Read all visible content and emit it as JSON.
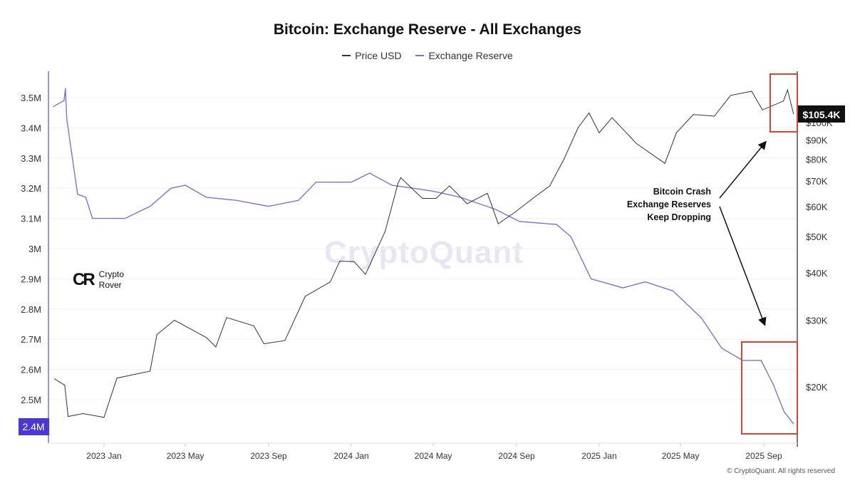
{
  "chart_data": {
    "type": "line",
    "title": "Bitcoin: Exchange Reserve - All Exchanges",
    "legend": {
      "placement": "top-center",
      "entries": [
        "Price USD",
        "Exchange Reserve"
      ]
    },
    "colors": {
      "price": "#333333",
      "reserve": "#7b74d6",
      "highlight": "#d9443a",
      "badge_reserve": "#4a37d8",
      "badge_price": "#111111"
    },
    "y_left": {
      "label": "",
      "ticks": [
        "3.5M",
        "3.4M",
        "3.3M",
        "3.2M",
        "3.1M",
        "3M",
        "2.9M",
        "2.8M",
        "2.7M",
        "2.6M",
        "2.5M"
      ],
      "tick_values": [
        3.5,
        3.4,
        3.3,
        3.2,
        3.1,
        3.0,
        2.9,
        2.8,
        2.7,
        2.6,
        2.5
      ],
      "range": [
        2.36,
        3.58
      ],
      "current_label": "2.4M"
    },
    "y_right": {
      "label": "",
      "scale": "log",
      "ticks": [
        "$100K",
        "$90K",
        "$80K",
        "$70K",
        "$60K",
        "$50K",
        "$40K",
        "$30K",
        "$20K"
      ],
      "tick_values": [
        100000,
        90000,
        80000,
        70000,
        60000,
        50000,
        40000,
        30000,
        20000
      ],
      "current_label": "$105.4K"
    },
    "x_ticks": [
      "2023 Jan",
      "2023 May",
      "2023 Sep",
      "2024 Jan",
      "2024 May",
      "2024 Sep",
      "2025 Jan",
      "2025 May",
      "2025 Sep"
    ],
    "x_tick_dates": [
      "2023-01-01",
      "2023-05-01",
      "2023-09-01",
      "2024-01-01",
      "2024-05-01",
      "2024-09-01",
      "2025-01-01",
      "2025-05-01",
      "2025-09-01"
    ],
    "grid": "horizontal",
    "series": [
      {
        "name": "Exchange Reserve",
        "axis": "left",
        "unit": "M BTC",
        "points": [
          [
            "2022-10-18",
            3.47
          ],
          [
            "2022-11-03",
            3.49
          ],
          [
            "2022-11-05",
            3.53
          ],
          [
            "2022-11-07",
            3.43
          ],
          [
            "2022-11-12",
            3.35
          ],
          [
            "2022-11-23",
            3.18
          ],
          [
            "2022-12-05",
            3.17
          ],
          [
            "2022-12-15",
            3.1
          ],
          [
            "2023-01-01",
            3.1
          ],
          [
            "2023-02-01",
            3.1
          ],
          [
            "2023-03-10",
            3.14
          ],
          [
            "2023-04-10",
            3.2
          ],
          [
            "2023-05-01",
            3.21
          ],
          [
            "2023-06-01",
            3.17
          ],
          [
            "2023-07-15",
            3.16
          ],
          [
            "2023-09-01",
            3.14
          ],
          [
            "2023-10-15",
            3.16
          ],
          [
            "2023-11-10",
            3.22
          ],
          [
            "2024-01-01",
            3.22
          ],
          [
            "2024-01-28",
            3.25
          ],
          [
            "2024-03-01",
            3.21
          ],
          [
            "2024-04-01",
            3.2
          ],
          [
            "2024-05-01",
            3.19
          ],
          [
            "2024-06-10",
            3.17
          ],
          [
            "2024-08-01",
            3.13
          ],
          [
            "2024-09-05",
            3.09
          ],
          [
            "2024-10-30",
            3.08
          ],
          [
            "2024-11-20",
            3.04
          ],
          [
            "2024-12-20",
            2.9
          ],
          [
            "2025-02-05",
            2.87
          ],
          [
            "2025-03-10",
            2.89
          ],
          [
            "2025-04-20",
            2.86
          ],
          [
            "2025-06-01",
            2.77
          ],
          [
            "2025-07-01",
            2.67
          ],
          [
            "2025-08-01",
            2.63
          ],
          [
            "2025-08-28",
            2.63
          ],
          [
            "2025-09-15",
            2.55
          ],
          [
            "2025-10-01",
            2.46
          ],
          [
            "2025-10-15",
            2.42
          ]
        ]
      },
      {
        "name": "Price USD",
        "axis": "right",
        "unit": "USD",
        "points": [
          [
            "2022-10-20",
            21000
          ],
          [
            "2022-11-04",
            20200
          ],
          [
            "2022-11-09",
            16700
          ],
          [
            "2022-12-01",
            17000
          ],
          [
            "2023-01-01",
            16600
          ],
          [
            "2023-01-20",
            21100
          ],
          [
            "2023-03-10",
            22000
          ],
          [
            "2023-03-20",
            27500
          ],
          [
            "2023-04-15",
            30000
          ],
          [
            "2023-06-01",
            27000
          ],
          [
            "2023-06-15",
            25500
          ],
          [
            "2023-07-01",
            30500
          ],
          [
            "2023-08-10",
            29000
          ],
          [
            "2023-08-25",
            26000
          ],
          [
            "2023-09-25",
            26500
          ],
          [
            "2023-10-25",
            34700
          ],
          [
            "2023-12-01",
            37900
          ],
          [
            "2023-12-15",
            43000
          ],
          [
            "2024-01-05",
            42900
          ],
          [
            "2024-01-22",
            39700
          ],
          [
            "2024-02-20",
            51500
          ],
          [
            "2024-03-10",
            69000
          ],
          [
            "2024-03-14",
            71500
          ],
          [
            "2024-04-15",
            63000
          ],
          [
            "2024-05-05",
            63000
          ],
          [
            "2024-05-25",
            68000
          ],
          [
            "2024-06-20",
            61000
          ],
          [
            "2024-07-20",
            65000
          ],
          [
            "2024-08-05",
            54000
          ],
          [
            "2024-08-30",
            58000
          ],
          [
            "2024-09-25",
            63000
          ],
          [
            "2024-10-20",
            68000
          ],
          [
            "2024-11-10",
            80000
          ],
          [
            "2024-12-01",
            97000
          ],
          [
            "2024-12-17",
            106000
          ],
          [
            "2025-01-01",
            94000
          ],
          [
            "2025-01-20",
            103000
          ],
          [
            "2025-02-25",
            88000
          ],
          [
            "2025-04-08",
            78000
          ],
          [
            "2025-04-25",
            94000
          ],
          [
            "2025-05-20",
            105000
          ],
          [
            "2025-06-20",
            104000
          ],
          [
            "2025-07-14",
            118000
          ],
          [
            "2025-08-14",
            121000
          ],
          [
            "2025-08-30",
            108000
          ],
          [
            "2025-09-30",
            114000
          ],
          [
            "2025-10-06",
            122000
          ],
          [
            "2025-10-15",
            105400
          ]
        ]
      }
    ],
    "annotation": [
      "Bitcoin Crash",
      "Exchange Reserves",
      "Keep Dropping"
    ]
  },
  "watermark": "CryptoQuant",
  "logo": {
    "line1": "Crypto",
    "line2": "Rover",
    "mark": "CR"
  },
  "copyright": "© CryptoQuant. All rights reserved"
}
